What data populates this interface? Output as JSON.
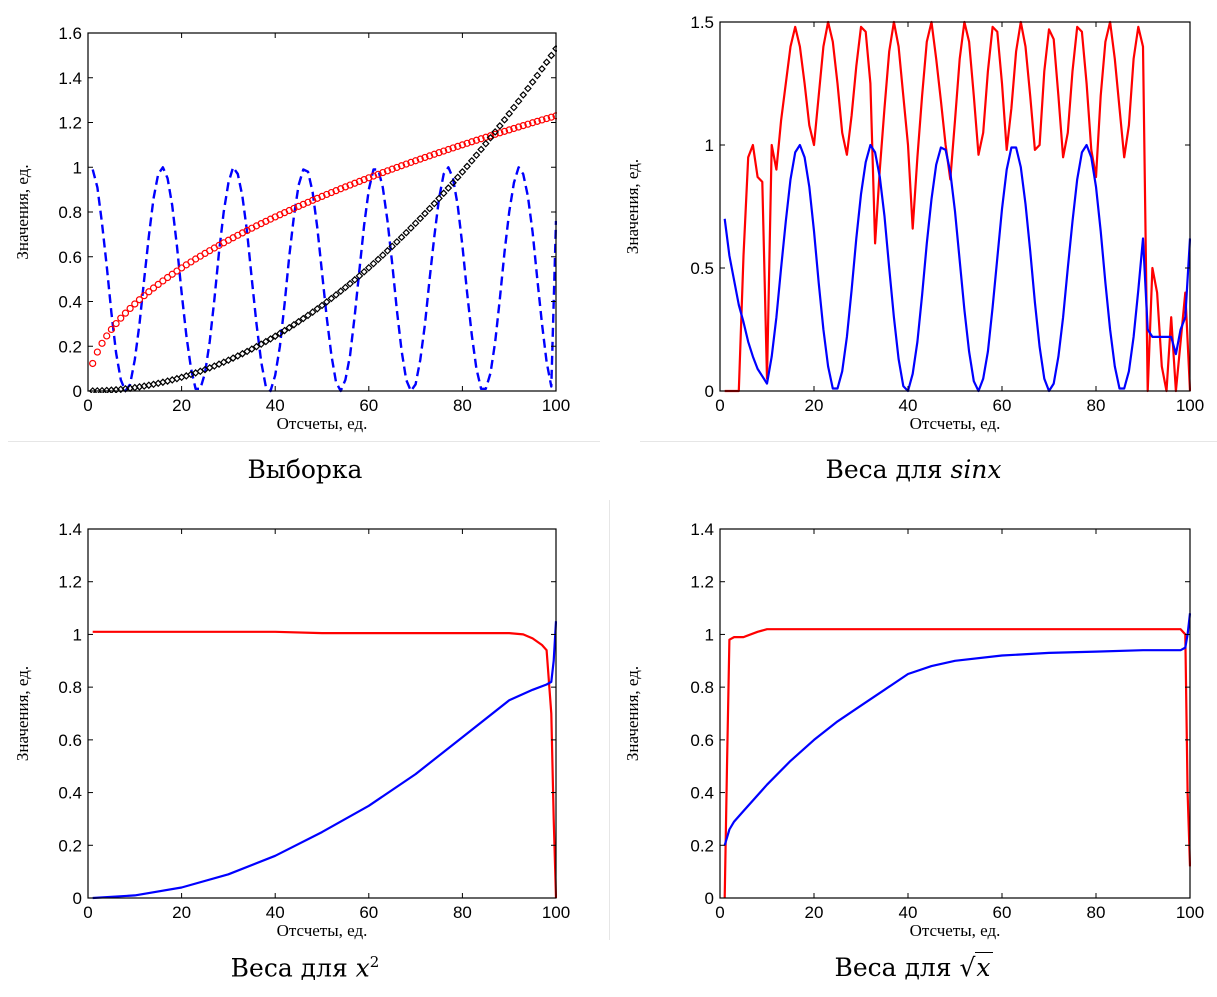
{
  "panels": [
    {
      "caption": "Выборка",
      "xlabel": "Отсчеты, ед.",
      "ylabel": "Значения, ед.",
      "xlim": [
        0,
        100
      ],
      "ylim": [
        0,
        1.6
      ],
      "xticks": [
        "0",
        "20",
        "40",
        "60",
        "80",
        "100"
      ],
      "yticks": [
        "0",
        "0.2",
        "0.4",
        "0.6",
        "0.8",
        "1",
        "1.2",
        "1.4",
        "1.6"
      ]
    },
    {
      "caption_text": "Веса для ",
      "caption_math": "sinx",
      "xlabel": "Отсчеты, ед.",
      "ylabel": "Значения, ед.",
      "xlim": [
        0,
        100
      ],
      "ylim": [
        0,
        1.5
      ],
      "xticks": [
        "0",
        "20",
        "40",
        "60",
        "80",
        "100"
      ],
      "yticks": [
        "0",
        "0.5",
        "1",
        "1.5"
      ]
    },
    {
      "caption_text": "Веса для ",
      "caption_math": "x",
      "caption_sup": "2",
      "xlabel": "Отсчеты, ед.",
      "ylabel": "Значения, ед.",
      "xlim": [
        0,
        100
      ],
      "ylim": [
        0,
        1.4
      ],
      "xticks": [
        "0",
        "20",
        "40",
        "60",
        "80",
        "100"
      ],
      "yticks": [
        "0",
        "0.2",
        "0.4",
        "0.6",
        "0.8",
        "1",
        "1.2",
        "1.4"
      ]
    },
    {
      "caption_text": "Веса для ",
      "caption_math": "x",
      "caption_sqrt": "√",
      "xlabel": "Отсчеты, ед.",
      "ylabel": "Значения, ед.",
      "xlim": [
        0,
        100
      ],
      "ylim": [
        0,
        1.4
      ],
      "xticks": [
        "0",
        "20",
        "40",
        "60",
        "80",
        "100"
      ],
      "yticks": [
        "0",
        "0.2",
        "0.4",
        "0.6",
        "0.8",
        "1",
        "1.2",
        "1.4"
      ]
    }
  ],
  "chart_data": [
    {
      "type": "line",
      "xlim": [
        0,
        100
      ],
      "ylim": [
        0,
        1.6
      ],
      "grid": false,
      "series": [
        {
          "color": "#0000ff",
          "style": "dashed",
          "x": [
            1,
            2,
            3,
            4,
            5,
            6,
            7,
            8,
            9,
            10,
            11,
            12,
            13,
            14,
            15,
            16,
            17,
            18,
            19,
            20,
            21,
            22,
            23,
            24,
            25,
            26,
            27,
            28,
            29,
            30,
            31,
            32,
            33,
            34,
            35,
            36,
            37,
            38,
            39,
            40,
            41,
            42,
            43,
            44,
            45,
            46,
            47,
            48,
            49,
            50,
            51,
            52,
            53,
            54,
            55,
            56,
            57,
            58,
            59,
            60,
            61,
            62,
            63,
            64,
            65,
            66,
            67,
            68,
            69,
            70,
            71,
            72,
            73,
            74,
            75,
            76,
            77,
            78,
            79,
            80,
            81,
            82,
            83,
            84,
            85,
            86,
            87,
            88,
            89,
            90,
            91,
            92,
            93,
            94,
            95,
            96,
            97,
            98,
            99,
            100
          ],
          "y": [
            0.99,
            0.91,
            0.75,
            0.56,
            0.35,
            0.17,
            0.05,
            0.0,
            0.03,
            0.14,
            0.3,
            0.5,
            0.69,
            0.86,
            0.97,
            1.0,
            0.95,
            0.83,
            0.65,
            0.44,
            0.25,
            0.1,
            0.01,
            0.01,
            0.08,
            0.22,
            0.41,
            0.62,
            0.8,
            0.93,
            1.0,
            0.97,
            0.87,
            0.71,
            0.5,
            0.3,
            0.13,
            0.02,
            0.0,
            0.07,
            0.2,
            0.39,
            0.6,
            0.78,
            0.92,
            0.99,
            0.98,
            0.89,
            0.73,
            0.53,
            0.33,
            0.16,
            0.04,
            0.0,
            0.05,
            0.16,
            0.34,
            0.54,
            0.74,
            0.9,
            0.99,
            0.99,
            0.91,
            0.76,
            0.57,
            0.36,
            0.18,
            0.05,
            0.0,
            0.03,
            0.14,
            0.3,
            0.5,
            0.69,
            0.86,
            0.97,
            1.0,
            0.95,
            0.83,
            0.65,
            0.44,
            0.25,
            0.1,
            0.01,
            0.01,
            0.08,
            0.22,
            0.41,
            0.62,
            0.8,
            0.93,
            1.0,
            0.97,
            0.87,
            0.71,
            0.5,
            0.3,
            0.13,
            0.02,
            0.76
          ]
        },
        {
          "color": "#ff0000",
          "style": "markers-circle",
          "x": "1..100",
          "y_rule": "0.123*sqrt(x)"
        },
        {
          "color": "#000000",
          "style": "markers-diamond",
          "x": "1..100",
          "y_rule": "1.53*(x/100)^2"
        }
      ]
    },
    {
      "type": "line",
      "xlim": [
        0,
        100
      ],
      "ylim": [
        0,
        1.5
      ],
      "grid": false,
      "series": [
        {
          "color": "#ff0000",
          "style": "solid",
          "x": [
            1,
            2,
            3,
            4,
            5,
            6,
            7,
            8,
            9,
            10,
            11,
            12,
            13,
            14,
            15,
            16,
            17,
            18,
            19,
            20,
            21,
            22,
            23,
            24,
            25,
            26,
            27,
            28,
            29,
            30,
            31,
            32,
            33,
            34,
            35,
            36,
            37,
            38,
            39,
            40,
            41,
            42,
            43,
            44,
            45,
            46,
            47,
            48,
            49,
            50,
            51,
            52,
            53,
            54,
            55,
            56,
            57,
            58,
            59,
            60,
            61,
            62,
            63,
            64,
            65,
            66,
            67,
            68,
            69,
            70,
            71,
            72,
            73,
            74,
            75,
            76,
            77,
            78,
            79,
            80,
            81,
            82,
            83,
            84,
            85,
            86,
            87,
            88,
            89,
            90,
            91,
            92,
            93,
            94,
            95,
            96,
            97,
            98,
            99,
            100
          ],
          "y": [
            0.0,
            0.0,
            0.0,
            0.0,
            0.55,
            0.95,
            1.0,
            0.87,
            0.85,
            0.05,
            1.0,
            0.9,
            1.1,
            1.25,
            1.4,
            1.48,
            1.4,
            1.25,
            1.08,
            1.0,
            1.2,
            1.4,
            1.5,
            1.42,
            1.25,
            1.05,
            0.96,
            1.12,
            1.32,
            1.48,
            1.46,
            1.25,
            0.6,
            0.9,
            1.15,
            1.38,
            1.5,
            1.4,
            1.2,
            1.0,
            0.66,
            0.95,
            1.2,
            1.42,
            1.5,
            1.35,
            1.18,
            1.0,
            0.86,
            1.1,
            1.35,
            1.5,
            1.42,
            1.2,
            0.96,
            1.05,
            1.3,
            1.48,
            1.46,
            1.25,
            0.98,
            1.15,
            1.38,
            1.5,
            1.4,
            1.2,
            0.98,
            1.0,
            1.3,
            1.47,
            1.43,
            1.2,
            0.95,
            1.05,
            1.3,
            1.48,
            1.46,
            1.25,
            0.98,
            0.87,
            1.2,
            1.42,
            1.5,
            1.35,
            1.15,
            0.95,
            1.08,
            1.35,
            1.48,
            1.4,
            0.0,
            0.5,
            0.4,
            0.1,
            0.0,
            0.3,
            0.0,
            0.2,
            0.4,
            0.0
          ]
        },
        {
          "color": "#0000ff",
          "style": "solid",
          "x": [
            1,
            2,
            3,
            4,
            5,
            6,
            7,
            8,
            9,
            10,
            11,
            12,
            13,
            14,
            15,
            16,
            17,
            18,
            19,
            20,
            21,
            22,
            23,
            24,
            25,
            26,
            27,
            28,
            29,
            30,
            31,
            32,
            33,
            34,
            35,
            36,
            37,
            38,
            39,
            40,
            41,
            42,
            43,
            44,
            45,
            46,
            47,
            48,
            49,
            50,
            51,
            52,
            53,
            54,
            55,
            56,
            57,
            58,
            59,
            60,
            61,
            62,
            63,
            64,
            65,
            66,
            67,
            68,
            69,
            70,
            71,
            72,
            73,
            74,
            75,
            76,
            77,
            78,
            79,
            80,
            81,
            82,
            83,
            84,
            85,
            86,
            87,
            88,
            89,
            90,
            91,
            92,
            93,
            94,
            95,
            96,
            97,
            98,
            99,
            100
          ],
          "y": [
            0.7,
            0.55,
            0.45,
            0.35,
            0.28,
            0.2,
            0.14,
            0.09,
            0.06,
            0.03,
            0.14,
            0.3,
            0.5,
            0.69,
            0.86,
            0.97,
            1.0,
            0.95,
            0.83,
            0.65,
            0.44,
            0.25,
            0.1,
            0.01,
            0.01,
            0.08,
            0.22,
            0.41,
            0.62,
            0.8,
            0.93,
            1.0,
            0.97,
            0.87,
            0.71,
            0.5,
            0.3,
            0.13,
            0.02,
            0.0,
            0.07,
            0.2,
            0.39,
            0.6,
            0.78,
            0.92,
            0.99,
            0.98,
            0.89,
            0.73,
            0.53,
            0.33,
            0.16,
            0.04,
            0.0,
            0.05,
            0.16,
            0.34,
            0.54,
            0.74,
            0.9,
            0.99,
            0.99,
            0.91,
            0.76,
            0.57,
            0.36,
            0.18,
            0.05,
            0.0,
            0.03,
            0.14,
            0.3,
            0.5,
            0.69,
            0.86,
            0.97,
            1.0,
            0.95,
            0.83,
            0.65,
            0.44,
            0.25,
            0.1,
            0.01,
            0.01,
            0.08,
            0.22,
            0.41,
            0.62,
            0.25,
            0.22,
            0.22,
            0.22,
            0.22,
            0.22,
            0.15,
            0.25,
            0.3,
            0.62
          ]
        }
      ]
    },
    {
      "type": "line",
      "xlim": [
        0,
        100
      ],
      "ylim": [
        0,
        1.4
      ],
      "grid": false,
      "series": [
        {
          "color": "#ff0000",
          "style": "solid",
          "x": [
            1,
            10,
            20,
            30,
            40,
            50,
            60,
            70,
            80,
            90,
            93,
            95,
            97,
            98,
            99,
            99.5,
            100
          ],
          "y": [
            1.01,
            1.01,
            1.01,
            1.01,
            1.01,
            1.005,
            1.005,
            1.005,
            1.005,
            1.005,
            1.0,
            0.985,
            0.96,
            0.94,
            0.7,
            0.3,
            0.0
          ]
        },
        {
          "color": "#0000ff",
          "style": "solid",
          "x": [
            1,
            10,
            20,
            30,
            40,
            50,
            60,
            70,
            80,
            90,
            95,
            98,
            99,
            99.5,
            100
          ],
          "y": [
            0.0,
            0.01,
            0.04,
            0.09,
            0.16,
            0.25,
            0.35,
            0.47,
            0.61,
            0.75,
            0.79,
            0.81,
            0.82,
            0.9,
            1.05
          ]
        }
      ]
    },
    {
      "type": "line",
      "xlim": [
        0,
        100
      ],
      "ylim": [
        0,
        1.4
      ],
      "grid": false,
      "series": [
        {
          "color": "#ff0000",
          "style": "solid",
          "x": [
            1,
            1.5,
            2,
            3,
            5,
            8,
            10,
            20,
            40,
            60,
            80,
            98,
            99,
            99.5,
            100
          ],
          "y": [
            0.0,
            0.5,
            0.98,
            0.99,
            0.99,
            1.01,
            1.02,
            1.02,
            1.02,
            1.02,
            1.02,
            1.02,
            1.0,
            0.4,
            0.12
          ]
        },
        {
          "color": "#0000ff",
          "style": "solid",
          "x": [
            1,
            2,
            3,
            5,
            10,
            15,
            20,
            25,
            30,
            35,
            40,
            45,
            50,
            60,
            70,
            80,
            90,
            98,
            99,
            99.5,
            100
          ],
          "y": [
            0.2,
            0.26,
            0.29,
            0.33,
            0.43,
            0.52,
            0.6,
            0.67,
            0.73,
            0.79,
            0.85,
            0.88,
            0.9,
            0.92,
            0.93,
            0.935,
            0.94,
            0.94,
            0.95,
            1.0,
            1.08
          ]
        }
      ]
    }
  ]
}
